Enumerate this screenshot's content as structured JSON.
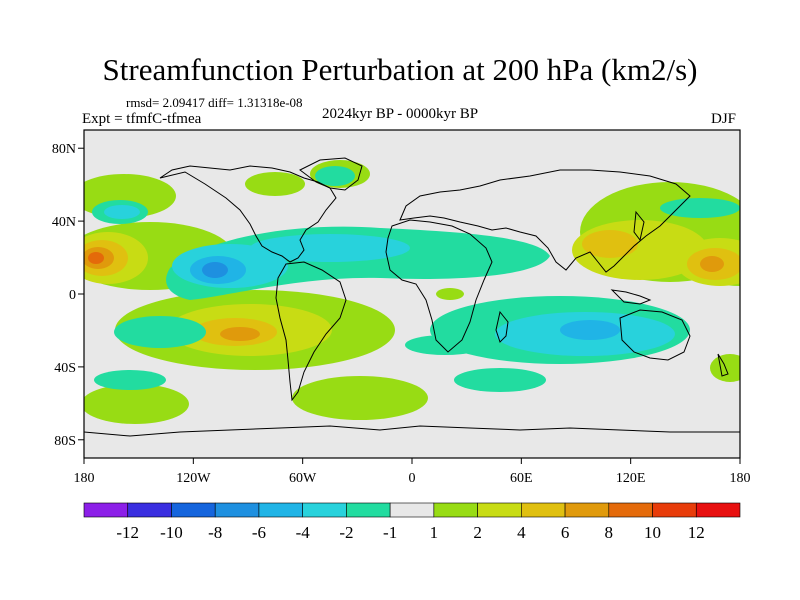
{
  "title": "Streamfunction Perturbation at 200 hPa (km2/s)",
  "stats_text": "rmsd= 2.09417 diff= 1.31318e-08",
  "experiment_label": "Expt = tfmfC-tfmea",
  "period_label": "2024kyr BP - 0000kyr BP",
  "season_label": "DJF",
  "map": {
    "projection": "cylindrical equidistant",
    "lon_range": [
      -180,
      180
    ],
    "lat_range": [
      -90,
      90
    ],
    "lat_ticks": [
      {
        "value": 80,
        "label": "80N"
      },
      {
        "value": 40,
        "label": "40N"
      },
      {
        "value": 0,
        "label": "0"
      },
      {
        "value": -40,
        "label": "40S"
      },
      {
        "value": -80,
        "label": "80S"
      }
    ],
    "lon_ticks": [
      {
        "value": -180,
        "label": "180"
      },
      {
        "value": -120,
        "label": "120W"
      },
      {
        "value": -60,
        "label": "60W"
      },
      {
        "value": 0,
        "label": "0"
      },
      {
        "value": 60,
        "label": "60E"
      },
      {
        "value": 120,
        "label": "120E"
      },
      {
        "value": 180,
        "label": "180"
      }
    ]
  },
  "colorbar": {
    "labels": [
      "-12",
      "-10",
      "-8",
      "-6",
      "-4",
      "-2",
      "-1",
      "1",
      "2",
      "4",
      "6",
      "8",
      "10",
      "12"
    ],
    "colors": [
      "#8c1fe8",
      "#3a2ee0",
      "#1565dd",
      "#1e90e0",
      "#20b4e6",
      "#28d2dc",
      "#22dca0",
      "#e8e8e8",
      "#98dc14",
      "#c8dc14",
      "#e0c010",
      "#e09a0c",
      "#e46a0a",
      "#e83c0a",
      "#e81010"
    ]
  },
  "chart_data": {
    "type": "heatmap",
    "title": "Streamfunction Perturbation at 200 hPa (km2/s)",
    "units": "km2/s",
    "contour_levels": [
      -12,
      -10,
      -8,
      -6,
      -4,
      -2,
      -1,
      1,
      2,
      4,
      6,
      8,
      10,
      12
    ],
    "features": [
      {
        "name": "central-pacific-north-high",
        "lon": -172,
        "lat": 22,
        "peak": 8
      },
      {
        "name": "west-pacific-north-high",
        "lon": 160,
        "lat": 22,
        "peak": 6
      },
      {
        "name": "east-asia-high",
        "lon": 120,
        "lat": 30,
        "peak": 5
      },
      {
        "name": "south-america-high",
        "lon": -100,
        "lat": -20,
        "peak": 6
      },
      {
        "name": "tropical-east-pacific-low",
        "lon": -110,
        "lat": 13,
        "peak": -5
      },
      {
        "name": "indian-ocean-low",
        "lon": 65,
        "lat": -15,
        "peak": -3
      },
      {
        "name": "north-atlantic-low",
        "lon": -30,
        "lat": 22,
        "peak": -2
      },
      {
        "name": "north-pacific-low",
        "lon": -160,
        "lat": 47,
        "peak": -2
      },
      {
        "name": "north-america-high",
        "lon": -100,
        "lat": 65,
        "peak": 2
      },
      {
        "name": "south-atlantic-high",
        "lon": -20,
        "lat": -55,
        "peak": 2
      },
      {
        "name": "south-pacific-high",
        "lon": -150,
        "lat": -58,
        "peak": 2
      }
    ]
  }
}
